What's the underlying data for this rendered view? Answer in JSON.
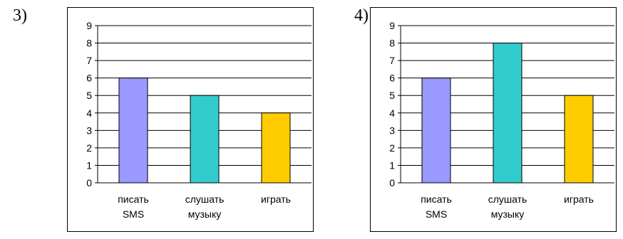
{
  "chart_data": [
    {
      "panel_label": "3)",
      "type": "bar",
      "categories": [
        [
          "писать",
          "SMS"
        ],
        [
          "слушать",
          "музыку"
        ],
        [
          "играть"
        ]
      ],
      "values": [
        6,
        5,
        4
      ],
      "colors": [
        "#9999ff",
        "#33cccc",
        "#ffcc00"
      ],
      "ylim": [
        0,
        9
      ],
      "yticks": [
        0,
        1,
        2,
        3,
        4,
        5,
        6,
        7,
        8,
        9
      ],
      "grid": true,
      "legend": "none"
    },
    {
      "panel_label": "4)",
      "type": "bar",
      "categories": [
        [
          "писать",
          "SMS"
        ],
        [
          "слушать",
          "музыку"
        ],
        [
          "играть"
        ]
      ],
      "values": [
        6,
        8,
        5
      ],
      "colors": [
        "#9999ff",
        "#33cccc",
        "#ffcc00"
      ],
      "ylim": [
        0,
        9
      ],
      "yticks": [
        0,
        1,
        2,
        3,
        4,
        5,
        6,
        7,
        8,
        9
      ],
      "grid": true,
      "legend": "none"
    }
  ]
}
